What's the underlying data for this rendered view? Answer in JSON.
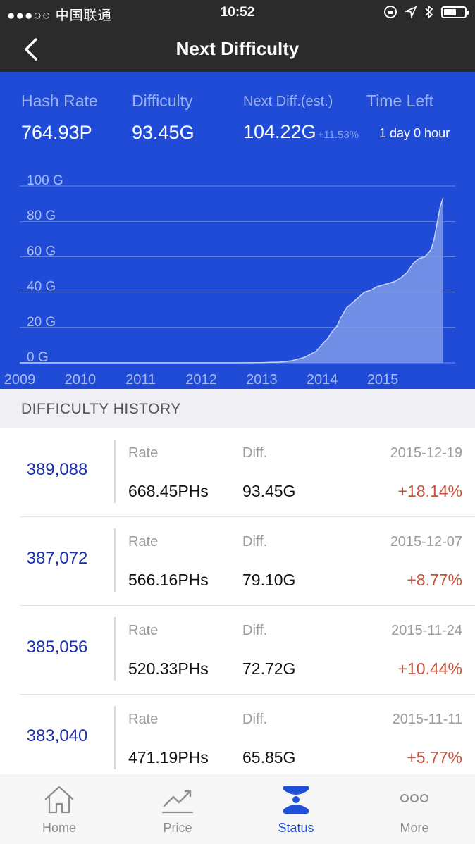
{
  "status_bar": {
    "carrier": "●●●○○ 中国联通",
    "time": "10:52",
    "battery_level": 0.6
  },
  "nav": {
    "title": "Next Difficulty",
    "back_icon": "chevron-left-icon"
  },
  "stats": {
    "hash_rate": {
      "label": "Hash Rate",
      "value": "764.93P"
    },
    "difficulty": {
      "label": "Difficulty",
      "value": "93.45G"
    },
    "next_diff": {
      "label": "Next Diff.(est.)",
      "value": "104.22G",
      "change": "+11.53%"
    },
    "time_left": {
      "label": "Time Left",
      "value": "1 day 0 hour"
    }
  },
  "chart_data": {
    "type": "area",
    "x_tick_labels": [
      "2009",
      "2010",
      "2011",
      "2012",
      "2013",
      "2014",
      "2015"
    ],
    "y_tick_labels": [
      "100 G",
      "80 G",
      "60 G",
      "40 G",
      "20 G",
      "0 G"
    ],
    "y_ticks": [
      100,
      80,
      60,
      40,
      20,
      0
    ],
    "ylim": [
      0,
      100
    ],
    "xlim": [
      2009.0,
      2016.2
    ],
    "x": [
      2009.0,
      2012.5,
      2013.0,
      2013.3,
      2013.5,
      2013.7,
      2013.9,
      2014.0,
      2014.1,
      2014.15,
      2014.25,
      2014.3,
      2014.4,
      2014.5,
      2014.6,
      2014.7,
      2014.8,
      2014.9,
      2015.0,
      2015.1,
      2015.2,
      2015.3,
      2015.4,
      2015.5,
      2015.6,
      2015.7,
      2015.8,
      2015.85,
      2015.9,
      2015.95,
      2016.0
    ],
    "y": [
      0,
      0,
      0.1,
      0.4,
      1.2,
      3.0,
      6.5,
      10.5,
      14.0,
      17.0,
      21.0,
      25.0,
      31.0,
      34.0,
      37.0,
      40.0,
      41.0,
      43.0,
      44.0,
      45.0,
      46.0,
      48.0,
      51.0,
      56.0,
      59.0,
      60.0,
      64.0,
      70.0,
      79.0,
      88.0,
      93.45
    ],
    "grid": true,
    "colors": {
      "fill": "#7f9ae8",
      "line": "#c9d4f7",
      "grid": "#6f8ce0"
    }
  },
  "history": {
    "title": "DIFFICULTY HISTORY",
    "rate_label": "Rate",
    "diff_label": "Diff.",
    "rows": [
      {
        "block": "389,088",
        "date": "2015-12-19",
        "rate": "668.45PHs",
        "diff": "93.45G",
        "change": "+18.14%"
      },
      {
        "block": "387,072",
        "date": "2015-12-07",
        "rate": "566.16PHs",
        "diff": "79.10G",
        "change": "+8.77%"
      },
      {
        "block": "385,056",
        "date": "2015-11-24",
        "rate": "520.33PHs",
        "diff": "72.72G",
        "change": "+10.44%"
      },
      {
        "block": "383,040",
        "date": "2015-11-11",
        "rate": "471.19PHs",
        "diff": "65.85G",
        "change": "+5.77%"
      }
    ]
  },
  "tabs": [
    {
      "label": "Home",
      "icon": "home-icon",
      "active": false
    },
    {
      "label": "Price",
      "icon": "trend-chart-icon",
      "active": false
    },
    {
      "label": "Status",
      "icon": "status-icon",
      "active": true
    },
    {
      "label": "More",
      "icon": "more-dots-icon",
      "active": false
    }
  ],
  "colors": {
    "accent": "#1f4bd6",
    "negative": "#c9513a",
    "block_link": "#1a2fa8",
    "active_tab": "#2050d8"
  }
}
